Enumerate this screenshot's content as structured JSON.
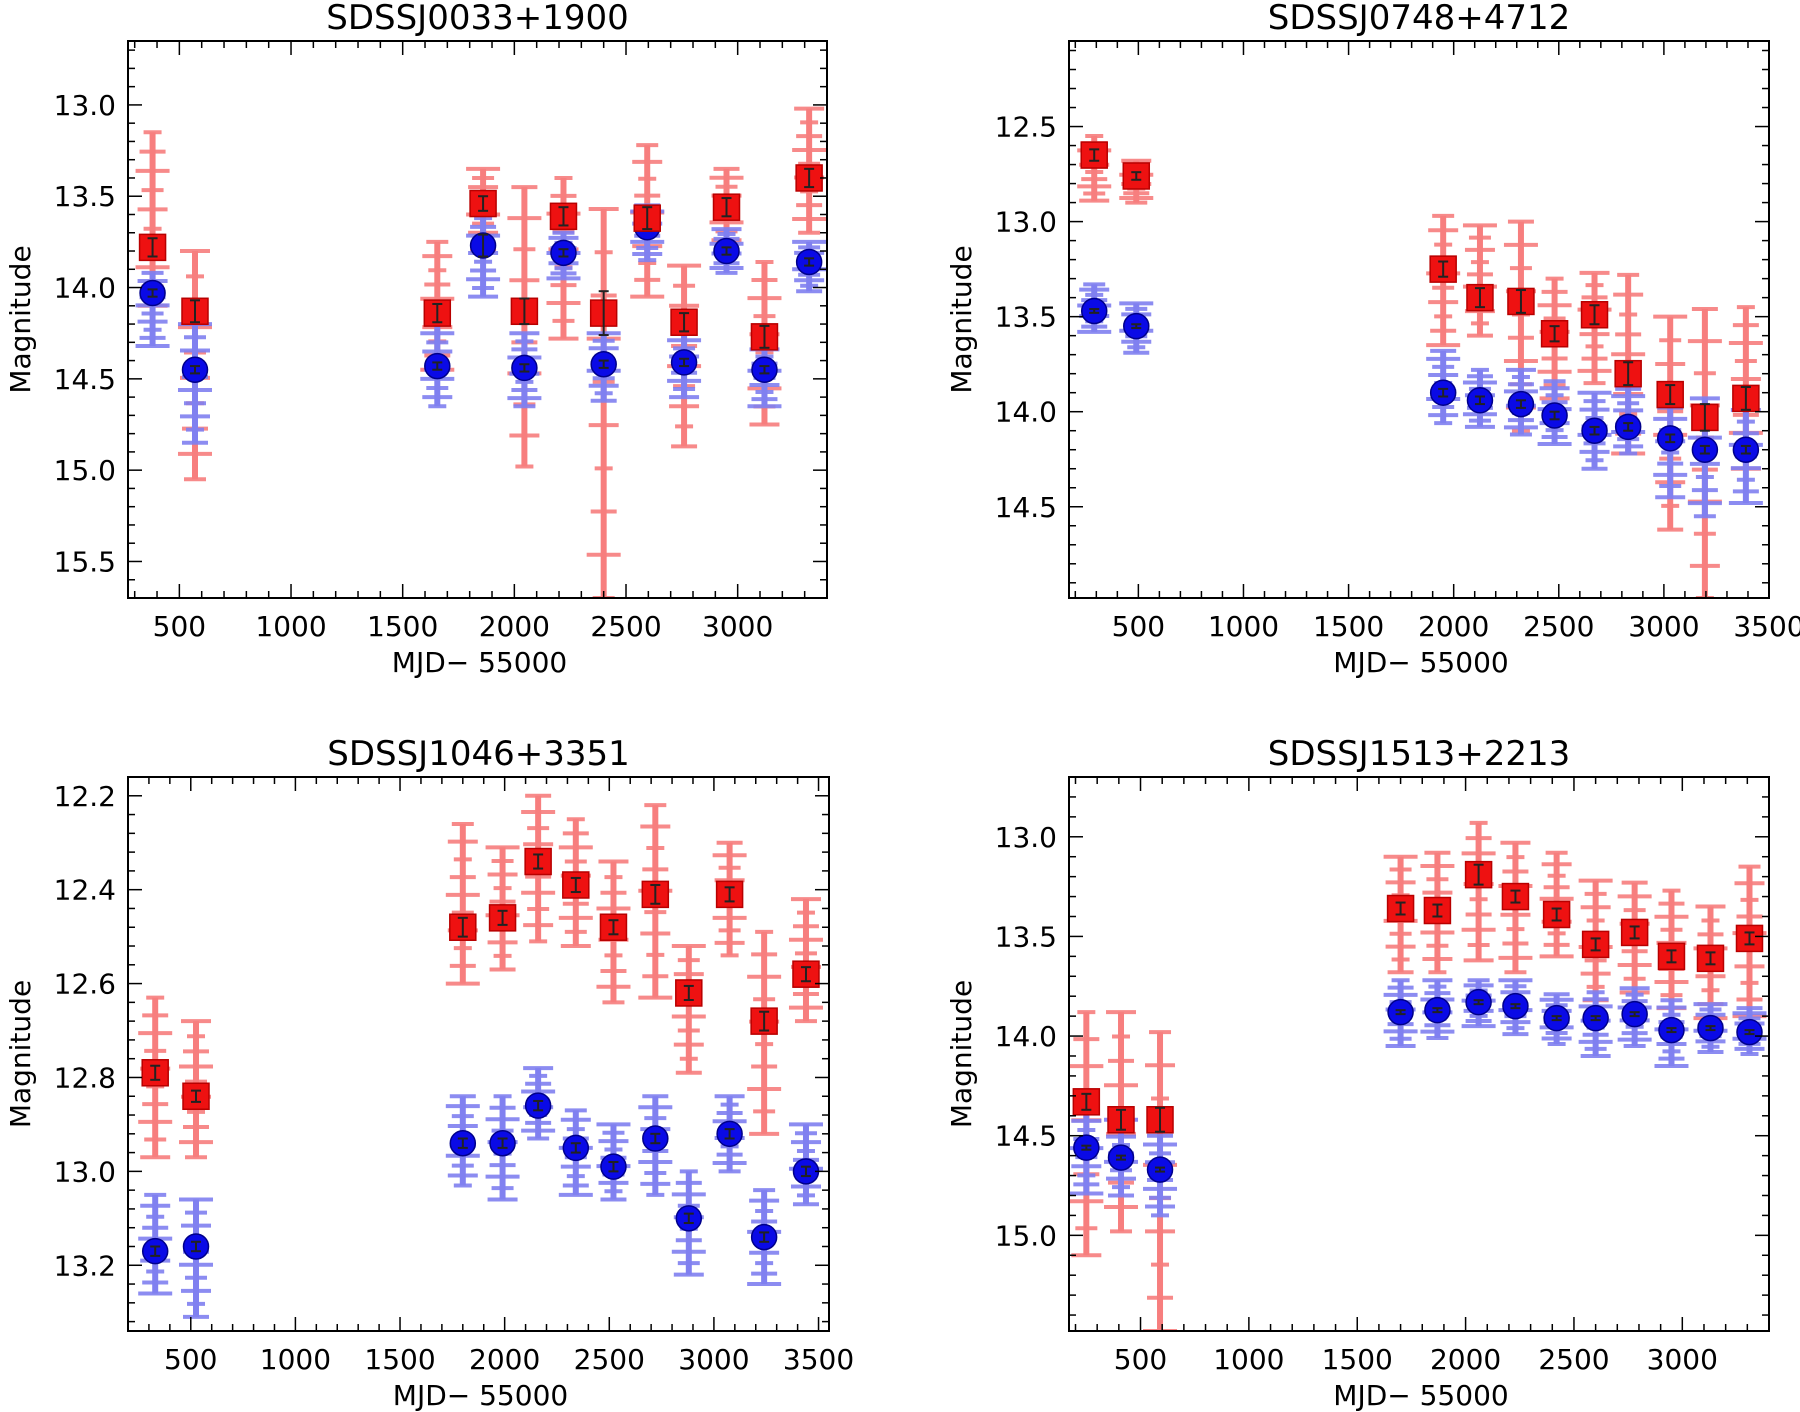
{
  "chart_data": [
    {
      "type": "scatter",
      "title": "SDSSJ0033+1900",
      "xlabel": "MJD− 55000",
      "ylabel": "Magnitude",
      "xlim": [
        270,
        3400
      ],
      "ylim": [
        15.7,
        12.65
      ],
      "xticks": [
        500,
        1000,
        1500,
        2000,
        2500,
        3000
      ],
      "xtick_labels": [
        "500",
        "1000",
        "1500",
        "2000",
        "2500",
        "3000"
      ],
      "yticks": [
        13.0,
        13.5,
        14.0,
        14.5,
        15.0,
        15.5
      ],
      "ytick_labels": [
        "13.0",
        "13.5",
        "14.0",
        "14.5",
        "15.0",
        "15.5"
      ],
      "series": [
        {
          "name": "red",
          "marker": "square",
          "x": [
            380,
            570,
            1655,
            1860,
            2045,
            2220,
            2400,
            2595,
            2760,
            2950,
            3120,
            3320
          ],
          "y": [
            13.78,
            14.13,
            14.14,
            13.54,
            14.13,
            13.61,
            14.14,
            13.62,
            14.19,
            13.56,
            14.27,
            13.4
          ],
          "err": [
            0.05,
            0.06,
            0.05,
            0.04,
            0.07,
            0.05,
            0.12,
            0.06,
            0.05,
            0.05,
            0.06,
            0.05
          ],
          "scatter_low": [
            13.15,
            13.8,
            13.75,
            13.35,
            13.45,
            13.4,
            13.57,
            13.22,
            13.88,
            13.35,
            13.86,
            13.02
          ],
          "scatter_high": [
            14.1,
            15.05,
            14.45,
            13.8,
            14.98,
            14.28,
            15.7,
            14.05,
            14.87,
            13.79,
            14.75,
            13.7
          ]
        },
        {
          "name": "blue",
          "marker": "circle",
          "x": [
            380,
            570,
            1655,
            1860,
            2045,
            2220,
            2400,
            2595,
            2760,
            2950,
            3120,
            3320
          ],
          "y": [
            14.03,
            14.45,
            14.43,
            13.77,
            14.44,
            13.81,
            14.42,
            13.67,
            14.41,
            13.8,
            14.45,
            13.86
          ],
          "err": [
            0.02,
            0.02,
            0.02,
            0.06,
            0.02,
            0.02,
            0.02,
            0.02,
            0.02,
            0.02,
            0.02,
            0.02
          ],
          "scatter_low": [
            13.92,
            14.2,
            14.2,
            13.62,
            14.25,
            13.7,
            14.25,
            13.55,
            14.2,
            13.68,
            14.3,
            13.75
          ],
          "scatter_high": [
            14.32,
            14.85,
            14.65,
            14.05,
            14.65,
            13.95,
            14.62,
            13.85,
            14.6,
            13.92,
            14.65,
            14.02
          ]
        }
      ]
    },
    {
      "type": "scatter",
      "title": "SDSSJ0748+4712",
      "xlabel": "MJD− 55000",
      "ylabel": "Magnitude",
      "xlim": [
        170,
        3500
      ],
      "ylim": [
        14.98,
        12.05
      ],
      "xticks": [
        500,
        1000,
        1500,
        2000,
        2500,
        3000,
        3500
      ],
      "xtick_labels": [
        "500",
        "1000",
        "1500",
        "2000",
        "2500",
        "3000",
        "3500"
      ],
      "yticks": [
        12.5,
        13.0,
        13.5,
        14.0,
        14.5
      ],
      "ytick_labels": [
        "12.5",
        "13.0",
        "13.5",
        "14.0",
        "14.5"
      ],
      "series": [
        {
          "name": "red",
          "marker": "square",
          "x": [
            290,
            490,
            1950,
            2125,
            2320,
            2480,
            2670,
            2830,
            3030,
            3195,
            3390
          ],
          "y": [
            12.65,
            12.76,
            13.25,
            13.4,
            13.42,
            13.59,
            13.49,
            13.8,
            13.91,
            14.03,
            13.93
          ],
          "err": [
            0.03,
            0.02,
            0.04,
            0.05,
            0.06,
            0.04,
            0.05,
            0.06,
            0.05,
            0.07,
            0.06
          ],
          "scatter_low": [
            12.55,
            12.68,
            12.97,
            13.02,
            13.0,
            13.3,
            13.27,
            13.28,
            13.5,
            13.46,
            13.45
          ],
          "scatter_high": [
            12.89,
            12.9,
            13.65,
            13.6,
            14.1,
            13.93,
            13.85,
            14.22,
            14.62,
            14.98,
            14.3
          ]
        },
        {
          "name": "blue",
          "marker": "circle",
          "x": [
            290,
            490,
            1950,
            2125,
            2320,
            2480,
            2670,
            2830,
            3030,
            3195,
            3390
          ],
          "y": [
            13.47,
            13.55,
            13.9,
            13.94,
            13.96,
            14.02,
            14.1,
            14.08,
            14.14,
            14.2,
            14.2
          ],
          "err": [
            0.01,
            0.01,
            0.02,
            0.02,
            0.02,
            0.02,
            0.02,
            0.02,
            0.02,
            0.02,
            0.02
          ],
          "scatter_low": [
            13.33,
            13.43,
            13.68,
            13.78,
            13.78,
            13.84,
            13.9,
            13.88,
            13.92,
            13.93,
            13.93
          ],
          "scatter_high": [
            13.58,
            13.69,
            14.06,
            14.08,
            14.12,
            14.17,
            14.3,
            14.22,
            14.45,
            14.55,
            14.48
          ]
        }
      ]
    },
    {
      "type": "scatter",
      "title": "SDSSJ1046+3351",
      "xlabel": "MJD− 55000",
      "ylabel": "Magnitude",
      "xlim": [
        200,
        3550
      ],
      "ylim": [
        13.34,
        12.16
      ],
      "xticks": [
        500,
        1000,
        1500,
        2000,
        2500,
        3000,
        3500
      ],
      "xtick_labels": [
        "500",
        "1000",
        "1500",
        "2000",
        "2500",
        "3000",
        "3500"
      ],
      "yticks": [
        12.2,
        12.4,
        12.6,
        12.8,
        13.0,
        13.2
      ],
      "ytick_labels": [
        "12.2",
        "12.4",
        "12.6",
        "12.8",
        "13.0",
        "13.2"
      ],
      "series": [
        {
          "name": "red",
          "marker": "square",
          "x": [
            330,
            525,
            1800,
            1990,
            2160,
            2340,
            2520,
            2720,
            2880,
            3075,
            3240,
            3440
          ],
          "y": [
            12.79,
            12.84,
            12.48,
            12.46,
            12.34,
            12.39,
            12.48,
            12.41,
            12.62,
            12.41,
            12.68,
            12.58
          ],
          "err": [
            0.015,
            0.012,
            0.02,
            0.015,
            0.015,
            0.015,
            0.015,
            0.02,
            0.015,
            0.015,
            0.02,
            0.015
          ],
          "scatter_low": [
            12.63,
            12.68,
            12.26,
            12.31,
            12.2,
            12.25,
            12.34,
            12.22,
            12.52,
            12.3,
            12.49,
            12.42
          ],
          "scatter_high": [
            12.97,
            12.97,
            12.6,
            12.57,
            12.51,
            12.52,
            12.64,
            12.63,
            12.79,
            12.54,
            12.92,
            12.68
          ]
        },
        {
          "name": "blue",
          "marker": "circle",
          "x": [
            330,
            525,
            1800,
            1990,
            2160,
            2340,
            2520,
            2720,
            2880,
            3075,
            3240,
            3440
          ],
          "y": [
            13.17,
            13.16,
            12.94,
            12.94,
            12.86,
            12.95,
            12.99,
            12.93,
            13.1,
            12.92,
            13.14,
            13.0
          ],
          "err": [
            0.01,
            0.01,
            0.01,
            0.01,
            0.01,
            0.01,
            0.01,
            0.01,
            0.01,
            0.01,
            0.01,
            0.01
          ],
          "scatter_low": [
            13.05,
            13.06,
            12.84,
            12.84,
            12.78,
            12.87,
            12.9,
            12.84,
            13.0,
            12.84,
            13.04,
            12.9
          ],
          "scatter_high": [
            13.26,
            13.31,
            13.03,
            13.06,
            12.93,
            13.05,
            13.06,
            13.05,
            13.22,
            13.0,
            13.24,
            13.07
          ]
        }
      ]
    },
    {
      "type": "scatter",
      "title": "SDSSJ1513+2213",
      "xlabel": "MJD− 55000",
      "ylabel": "Magnitude",
      "xlim": [
        170,
        3400
      ],
      "ylim": [
        15.48,
        12.7
      ],
      "xticks": [
        500,
        1000,
        1500,
        2000,
        2500,
        3000
      ],
      "xtick_labels": [
        "500",
        "1000",
        "1500",
        "2000",
        "2500",
        "3000"
      ],
      "yticks": [
        13.0,
        13.5,
        14.0,
        14.5,
        15.0
      ],
      "ytick_labels": [
        "13.0",
        "13.5",
        "14.0",
        "14.5",
        "15.0"
      ],
      "series": [
        {
          "name": "red",
          "marker": "square",
          "x": [
            250,
            410,
            590,
            1700,
            1870,
            2060,
            2230,
            2420,
            2600,
            2780,
            2950,
            3130,
            3310
          ],
          "y": [
            14.33,
            14.42,
            14.42,
            13.36,
            13.37,
            13.19,
            13.3,
            13.39,
            13.54,
            13.48,
            13.6,
            13.61,
            13.51
          ],
          "err": [
            0.04,
            0.05,
            0.06,
            0.03,
            0.03,
            0.05,
            0.03,
            0.03,
            0.03,
            0.03,
            0.03,
            0.03,
            0.03
          ],
          "scatter_low": [
            13.88,
            13.88,
            13.98,
            13.1,
            13.08,
            12.93,
            13.03,
            13.08,
            13.22,
            13.23,
            13.27,
            13.35,
            13.15
          ],
          "scatter_high": [
            15.1,
            14.98,
            15.48,
            13.68,
            13.68,
            13.62,
            13.68,
            13.6,
            13.82,
            13.85,
            13.86,
            13.98,
            13.9
          ]
        },
        {
          "name": "blue",
          "marker": "circle",
          "x": [
            250,
            410,
            590,
            1700,
            1870,
            2060,
            2230,
            2420,
            2600,
            2780,
            2950,
            3130,
            3310
          ],
          "y": [
            14.56,
            14.61,
            14.67,
            13.88,
            13.87,
            13.83,
            13.85,
            13.91,
            13.91,
            13.89,
            13.97,
            13.96,
            13.98
          ],
          "err": [
            0.01,
            0.01,
            0.01,
            0.01,
            0.01,
            0.01,
            0.01,
            0.01,
            0.01,
            0.01,
            0.01,
            0.01,
            0.01
          ],
          "scatter_low": [
            14.38,
            14.42,
            14.5,
            13.72,
            13.72,
            13.72,
            13.72,
            13.79,
            13.78,
            13.76,
            13.82,
            13.84,
            13.86
          ],
          "scatter_high": [
            14.79,
            14.8,
            14.9,
            14.05,
            14.01,
            13.95,
            13.99,
            14.04,
            14.1,
            14.05,
            14.15,
            14.08,
            14.09
          ]
        }
      ]
    }
  ]
}
